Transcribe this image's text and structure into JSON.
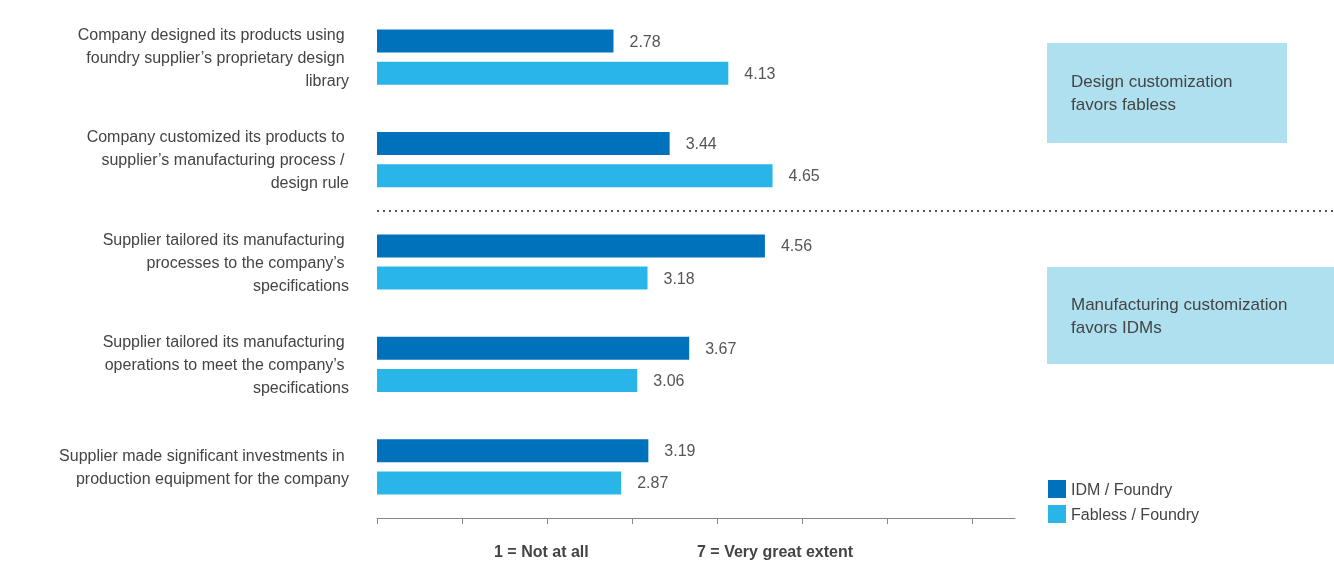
{
  "chart_data": {
    "type": "bar",
    "orientation": "horizontal",
    "categories": [
      "Company designed its products using foundry supplier’s proprietary design library",
      "Company customized its products to supplier’s manufacturing process / design rule",
      "Supplier tailored its manufacturing processes to the company’s specifications",
      "Supplier tailored its manufacturing operations to meet the company’s specifications",
      "Supplier made significant investments in production equipment for the company"
    ],
    "series": [
      {
        "name": "IDM / Foundry",
        "color": "#0072bc",
        "values": [
          2.78,
          3.44,
          4.56,
          3.67,
          3.19
        ]
      },
      {
        "name": "Fabless / Foundry",
        "color": "#29b5e8",
        "values": [
          4.13,
          4.65,
          3.18,
          3.06,
          2.87
        ]
      }
    ],
    "xlim": [
      0,
      7.5
    ],
    "xticks": [
      {
        "value": 0,
        "label": null
      },
      {
        "value": 1,
        "label": null
      },
      {
        "value": 2,
        "label": null
      },
      {
        "value": 3,
        "label": null
      },
      {
        "value": 4,
        "label": null
      },
      {
        "value": 5,
        "label": null
      },
      {
        "value": 6,
        "label": null
      },
      {
        "value": 7,
        "label": null
      }
    ],
    "tick_labels": "y",
    "data_labels": true,
    "grid": false,
    "legend": "bottom right",
    "annotations": [
      "Design customization favors fabless",
      "Manufacturing customization favors IDMs",
      "1 = Not at all",
      "7 = Very great extent"
    ]
  }
}
